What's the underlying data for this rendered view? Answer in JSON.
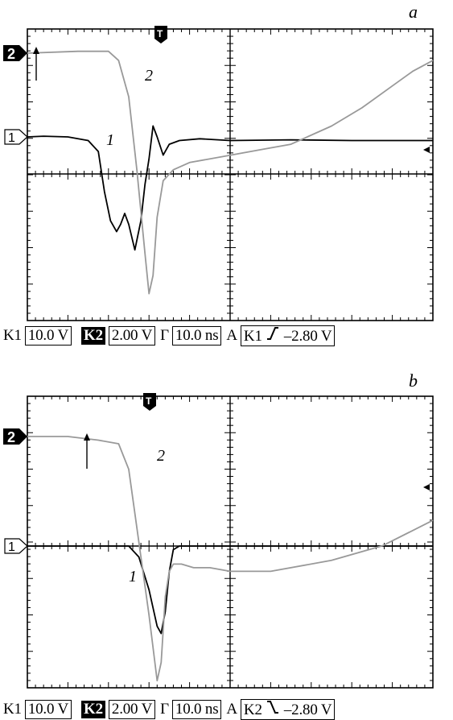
{
  "chart_data": [
    {
      "type": "line",
      "panel_label": "a",
      "markers": {
        "ch2": "2",
        "ch1": "1",
        "trigger": "T"
      },
      "series": [
        {
          "name": "1",
          "color": "#000000",
          "points": [
            [
              0,
              1.1
            ],
            [
              8,
              1.12
            ],
            [
              20,
              1.1
            ],
            [
              30,
              1.0
            ],
            [
              35,
              0.7
            ],
            [
              38,
              -0.4
            ],
            [
              41,
              -1.2
            ],
            [
              44,
              -1.5
            ],
            [
              46,
              -1.3
            ],
            [
              48,
              -1.0
            ],
            [
              50,
              -1.3
            ],
            [
              53,
              -2.0
            ],
            [
              56,
              -1.2
            ],
            [
              58,
              -0.2
            ],
            [
              60,
              0.5
            ],
            [
              62,
              1.4
            ],
            [
              64,
              1.1
            ],
            [
              67,
              0.6
            ],
            [
              70,
              0.9
            ],
            [
              75,
              1.0
            ],
            [
              85,
              1.05
            ],
            [
              100,
              1.0
            ],
            [
              130,
              1.02
            ],
            [
              160,
              1.0
            ],
            [
              200,
              1.0
            ]
          ]
        },
        {
          "name": "2",
          "color": "#999999",
          "points": [
            [
              0,
              3.7
            ],
            [
              25,
              3.75
            ],
            [
              40,
              3.75
            ],
            [
              45,
              3.5
            ],
            [
              50,
              2.5
            ],
            [
              54,
              0.5
            ],
            [
              58,
              -1.8
            ],
            [
              60,
              -2.9
            ],
            [
              62,
              -2.4
            ],
            [
              64,
              -0.8
            ],
            [
              67,
              0.2
            ],
            [
              72,
              0.5
            ],
            [
              80,
              0.7
            ],
            [
              100,
              0.9
            ],
            [
              115,
              1.05
            ],
            [
              130,
              1.2
            ],
            [
              150,
              1.7
            ],
            [
              165,
              2.2
            ],
            [
              180,
              2.8
            ],
            [
              190,
              3.2
            ],
            [
              200,
              3.5
            ]
          ]
        }
      ],
      "status": {
        "ch1_name": "K1",
        "ch1_scale": "10.0 V",
        "ch2_name": "K2",
        "ch2_scale": "2.00 V",
        "time_symbol": "Γ",
        "time_scale": "10.0 ns",
        "trigger_mode": "A",
        "trigger_source": "K1",
        "trigger_slope": "rising",
        "trigger_level": "–2.80 V"
      }
    },
    {
      "type": "line",
      "panel_label": "b",
      "markers": {
        "ch2": "2",
        "ch1": "1",
        "trigger": "T"
      },
      "series": [
        {
          "name": "1",
          "color": "#000000",
          "points": [
            [
              0,
              0.0
            ],
            [
              30,
              0.0
            ],
            [
              50,
              0.0
            ],
            [
              55,
              -0.3
            ],
            [
              60,
              -1.2
            ],
            [
              64,
              -2.2
            ],
            [
              66,
              -2.4
            ],
            [
              68,
              -1.8
            ],
            [
              70,
              -0.7
            ],
            [
              72,
              -0.1
            ],
            [
              75,
              0.0
            ],
            [
              100,
              0.0
            ],
            [
              200,
              0.0
            ]
          ]
        },
        {
          "name": "2",
          "color": "#999999",
          "points": [
            [
              0,
              3.4
            ],
            [
              20,
              3.4
            ],
            [
              35,
              3.3
            ],
            [
              45,
              3.2
            ],
            [
              50,
              2.5
            ],
            [
              55,
              0.5
            ],
            [
              60,
              -1.5
            ],
            [
              64,
              -3.3
            ],
            [
              66,
              -2.8
            ],
            [
              68,
              -1.0
            ],
            [
              70,
              -0.3
            ],
            [
              72,
              -0.1
            ],
            [
              76,
              -0.1
            ],
            [
              82,
              -0.2
            ],
            [
              90,
              -0.2
            ],
            [
              100,
              -0.3
            ],
            [
              120,
              -0.3
            ],
            [
              150,
              0.0
            ],
            [
              175,
              0.4
            ],
            [
              200,
              1.1
            ]
          ]
        }
      ],
      "status": {
        "ch1_name": "K1",
        "ch1_scale": "10.0 V",
        "ch2_name": "K2",
        "ch2_scale": "2.00 V",
        "time_symbol": "Γ",
        "time_scale": "10.0 ns",
        "trigger_mode": "A",
        "trigger_source": "K2",
        "trigger_slope": "falling",
        "trigger_level": "–2.80 V"
      }
    }
  ]
}
